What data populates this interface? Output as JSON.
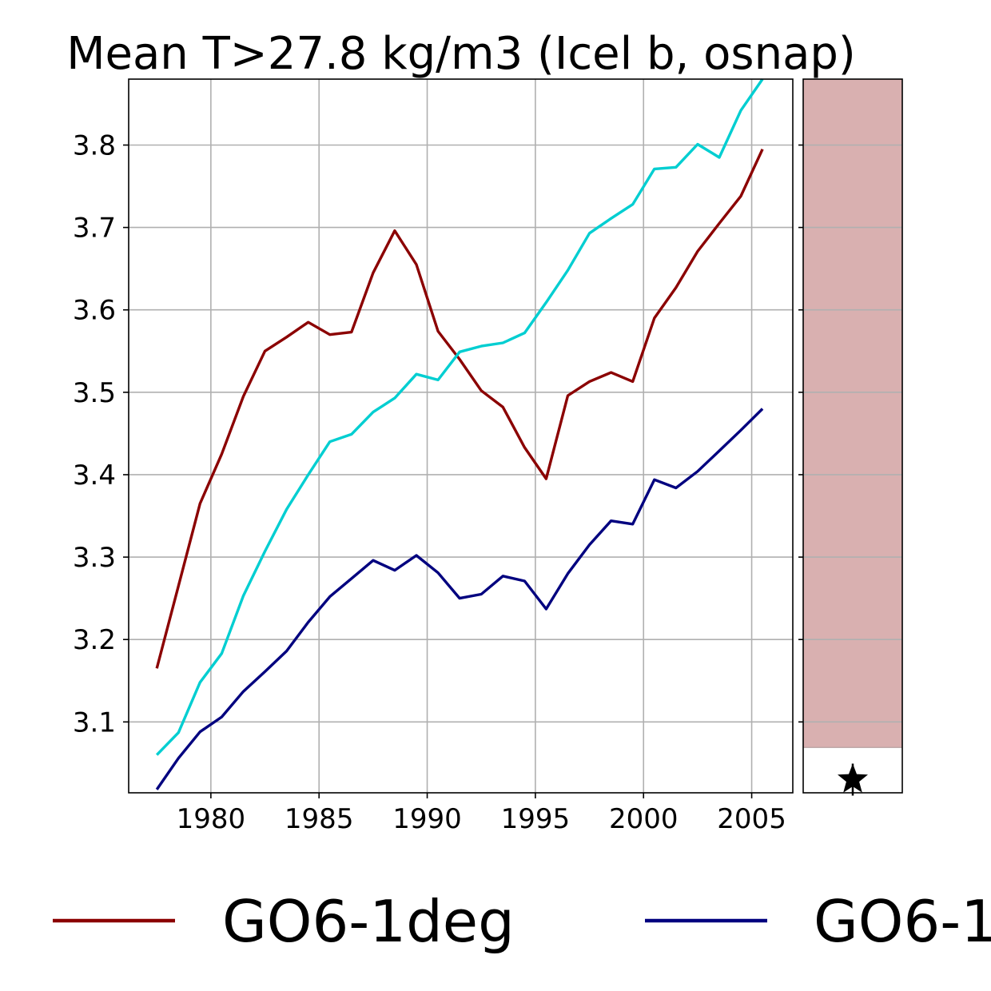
{
  "chart_data": {
    "type": "line",
    "title": "Mean T>27.8 kg/m3 (Icel b, osnap)",
    "xlabel": "",
    "ylabel": "",
    "xlim": [
      1976.2,
      2006.9
    ],
    "ylim": [
      3.014,
      3.88
    ],
    "xticks": [
      1980,
      1985,
      1990,
      1995,
      2000,
      2005
    ],
    "xtick_labels": [
      "1980",
      "1985",
      "1990",
      "1995",
      "2000",
      "2005"
    ],
    "yticks": [
      3.1,
      3.2,
      3.3,
      3.4,
      3.5,
      3.6,
      3.7,
      3.8
    ],
    "ytick_labels": [
      "3.1",
      "3.2",
      "3.3",
      "3.4",
      "3.5",
      "3.6",
      "3.7",
      "3.8"
    ],
    "grid": true,
    "legend_position": "bottom",
    "series": [
      {
        "name": "GO6-1deg",
        "color": "#8b0000",
        "x": [
          1977.5,
          1978.5,
          1979.5,
          1980.5,
          1981.5,
          1982.5,
          1983.5,
          1984.5,
          1985.5,
          1986.5,
          1987.5,
          1988.5,
          1989.5,
          1990.5,
          1991.5,
          1992.5,
          1993.5,
          1994.5,
          1995.5,
          1996.5,
          1997.5,
          1998.5,
          1999.5,
          2000.5,
          2001.5,
          2002.5,
          2003.5,
          2004.5,
          2005.5
        ],
        "values": [
          3.165,
          3.265,
          3.365,
          3.425,
          3.495,
          3.55,
          3.567,
          3.585,
          3.57,
          3.573,
          3.645,
          3.696,
          3.655,
          3.574,
          3.54,
          3.502,
          3.482,
          3.433,
          3.395,
          3.496,
          3.513,
          3.524,
          3.513,
          3.59,
          3.627,
          3.671,
          3.705,
          3.738,
          3.795
        ]
      },
      {
        "name": "GO6-1",
        "color": "#00007f",
        "x": [
          1977.5,
          1978.5,
          1979.5,
          1980.5,
          1981.5,
          1982.5,
          1983.5,
          1984.5,
          1985.5,
          1986.5,
          1987.5,
          1988.5,
          1989.5,
          1990.5,
          1991.5,
          1992.5,
          1993.5,
          1994.5,
          1995.5,
          1996.5,
          1997.5,
          1998.5,
          1999.5,
          2000.5,
          2001.5,
          2002.5,
          2003.5,
          2004.5,
          2005.5
        ],
        "values": [
          3.018,
          3.056,
          3.088,
          3.106,
          3.137,
          3.161,
          3.186,
          3.221,
          3.252,
          3.274,
          3.296,
          3.284,
          3.302,
          3.281,
          3.25,
          3.255,
          3.277,
          3.271,
          3.237,
          3.28,
          3.315,
          3.344,
          3.34,
          3.394,
          3.384,
          3.404,
          3.429,
          3.454,
          3.48
        ]
      },
      {
        "name": "",
        "color": "#00ced1",
        "x": [
          1977.5,
          1978.5,
          1979.5,
          1980.5,
          1981.5,
          1982.5,
          1983.5,
          1984.5,
          1985.5,
          1986.5,
          1987.5,
          1988.5,
          1989.5,
          1990.5,
          1991.5,
          1992.5,
          1993.5,
          1994.5,
          1995.5,
          1996.5,
          1997.5,
          1998.5,
          1999.5,
          2000.5,
          2001.5,
          2002.5,
          2003.5,
          2004.5,
          2005.5
        ],
        "values": [
          3.06,
          3.087,
          3.148,
          3.183,
          3.253,
          3.307,
          3.358,
          3.4,
          3.44,
          3.449,
          3.476,
          3.493,
          3.522,
          3.515,
          3.549,
          3.556,
          3.56,
          3.572,
          3.609,
          3.648,
          3.693,
          3.711,
          3.728,
          3.771,
          3.773,
          3.801,
          3.785,
          3.842,
          3.88
        ]
      }
    ],
    "side_panel": {
      "ylim": [
        3.014,
        3.88
      ],
      "band": {
        "from": 3.069,
        "to": 3.88,
        "color": "#d9b0b0"
      },
      "marker": {
        "symbol": "star",
        "value": 3.03,
        "color": "#000000"
      }
    },
    "legend": [
      {
        "label": "GO6-1deg",
        "color": "#8b0000"
      },
      {
        "label": "GO6-1",
        "color": "#00007f"
      }
    ]
  }
}
